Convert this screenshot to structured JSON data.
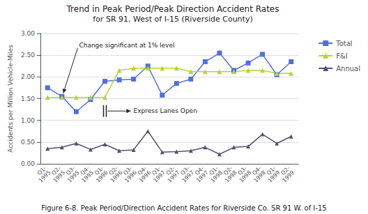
{
  "chart_data": {
    "type": "line",
    "title": "Trend in Peak Period/Peak Direction Accident Rates",
    "subtitle": "for SR 91, West of I-15 (Riverside County)",
    "caption": "Figure 6-8. Peak Period/Direction Accident Rates for Riverside Co. SR 91 W. of I-15",
    "ylabel": "Accidents per Million Vehicle-Miles",
    "categories": [
      "Q1-\n1995",
      "Q2-\n1995",
      "Q3-\n1995",
      "Q4-\n1995",
      "Q1-\n1996",
      "Q2-\n1996",
      "Q3-\n1996",
      "Q4-\n1996",
      "Q1-\n1997",
      "Q2-\n1997",
      "Q3-\n1997",
      "Q4-\n1997",
      "Q1-\n1998",
      "Q2-\n1998",
      "Q3-\n1998",
      "Q4-\n1998",
      "Q1-\n1999",
      "Q2-\n1999"
    ],
    "series": [
      {
        "name": "Total",
        "marker": "square",
        "values": [
          1.75,
          1.55,
          1.2,
          1.48,
          1.9,
          1.93,
          1.95,
          2.25,
          1.58,
          1.85,
          1.95,
          2.35,
          2.55,
          2.15,
          2.32,
          2.52,
          2.05,
          2.35
        ]
      },
      {
        "name": "F&I",
        "marker": "triangle",
        "values": [
          1.53,
          1.53,
          1.53,
          1.53,
          1.53,
          2.15,
          2.2,
          2.2,
          2.2,
          2.2,
          2.12,
          2.12,
          2.12,
          2.12,
          2.15,
          2.15,
          2.08,
          2.08
        ]
      },
      {
        "name": "Annual",
        "marker": "triangle",
        "values": [
          0.35,
          0.38,
          0.47,
          0.33,
          0.45,
          0.3,
          0.32,
          0.75,
          0.27,
          0.28,
          0.3,
          0.38,
          0.22,
          0.38,
          0.4,
          0.68,
          0.47,
          0.63
        ]
      }
    ],
    "ylim": [
      0.0,
      3.0
    ],
    "yticks": [
      {
        "value": 0.0,
        "label": "0.00"
      },
      {
        "value": 0.5,
        "label": "0.50"
      },
      {
        "value": 1.0,
        "label": "1.00"
      },
      {
        "value": 1.5,
        "label": "1.50"
      },
      {
        "value": 2.0,
        "label": "2.00"
      },
      {
        "value": 2.5,
        "label": "2.50"
      },
      {
        "value": 3.0,
        "label": "3.00"
      }
    ],
    "grid": true,
    "legend": "right",
    "annotations": [
      "Change significant at 1% level",
      "Express Lanes Open"
    ]
  }
}
